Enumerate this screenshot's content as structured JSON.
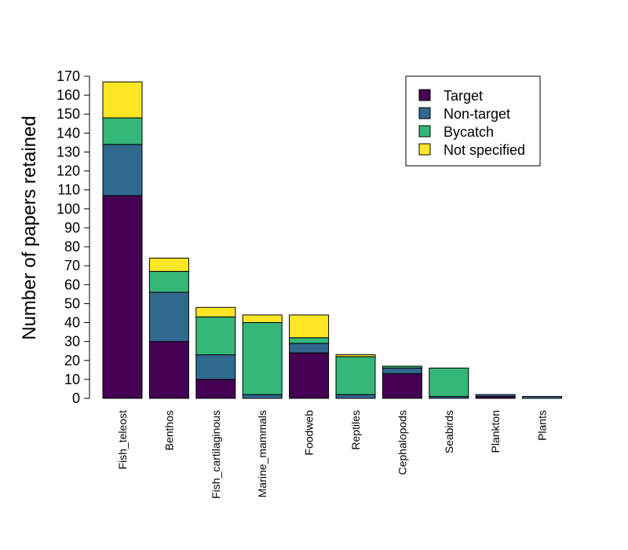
{
  "chart_data": {
    "type": "bar",
    "stacked": true,
    "categories": [
      "Fish_teleost",
      "Benthos",
      "Fish_cartilaginous",
      "Marine_mammals",
      "Foodweb",
      "Reptiles",
      "Cephalopods",
      "Seabirds",
      "Plankton",
      "Plants"
    ],
    "series": [
      {
        "name": "Target",
        "color": "#440154",
        "values": [
          107,
          30,
          10,
          0,
          24,
          0,
          13,
          0,
          1,
          0
        ]
      },
      {
        "name": "Non-target",
        "color": "#31688E",
        "values": [
          27,
          26,
          13,
          2,
          5,
          2,
          3,
          1,
          1,
          1
        ]
      },
      {
        "name": "Bycatch",
        "color": "#35B779",
        "values": [
          14,
          11,
          20,
          38,
          3,
          20,
          1,
          15,
          0,
          0
        ]
      },
      {
        "name": "Not specified",
        "color": "#FDE725",
        "values": [
          19,
          7,
          5,
          4,
          12,
          1,
          0,
          0,
          0,
          0
        ]
      }
    ],
    "ylabel": "Number of papers retained",
    "xlabel": "",
    "ylim": [
      0,
      170
    ],
    "yticks": [
      0,
      10,
      20,
      30,
      40,
      50,
      60,
      70,
      80,
      90,
      100,
      110,
      120,
      130,
      140,
      150,
      160,
      170
    ],
    "legend_position": "top-right",
    "grid": false
  }
}
